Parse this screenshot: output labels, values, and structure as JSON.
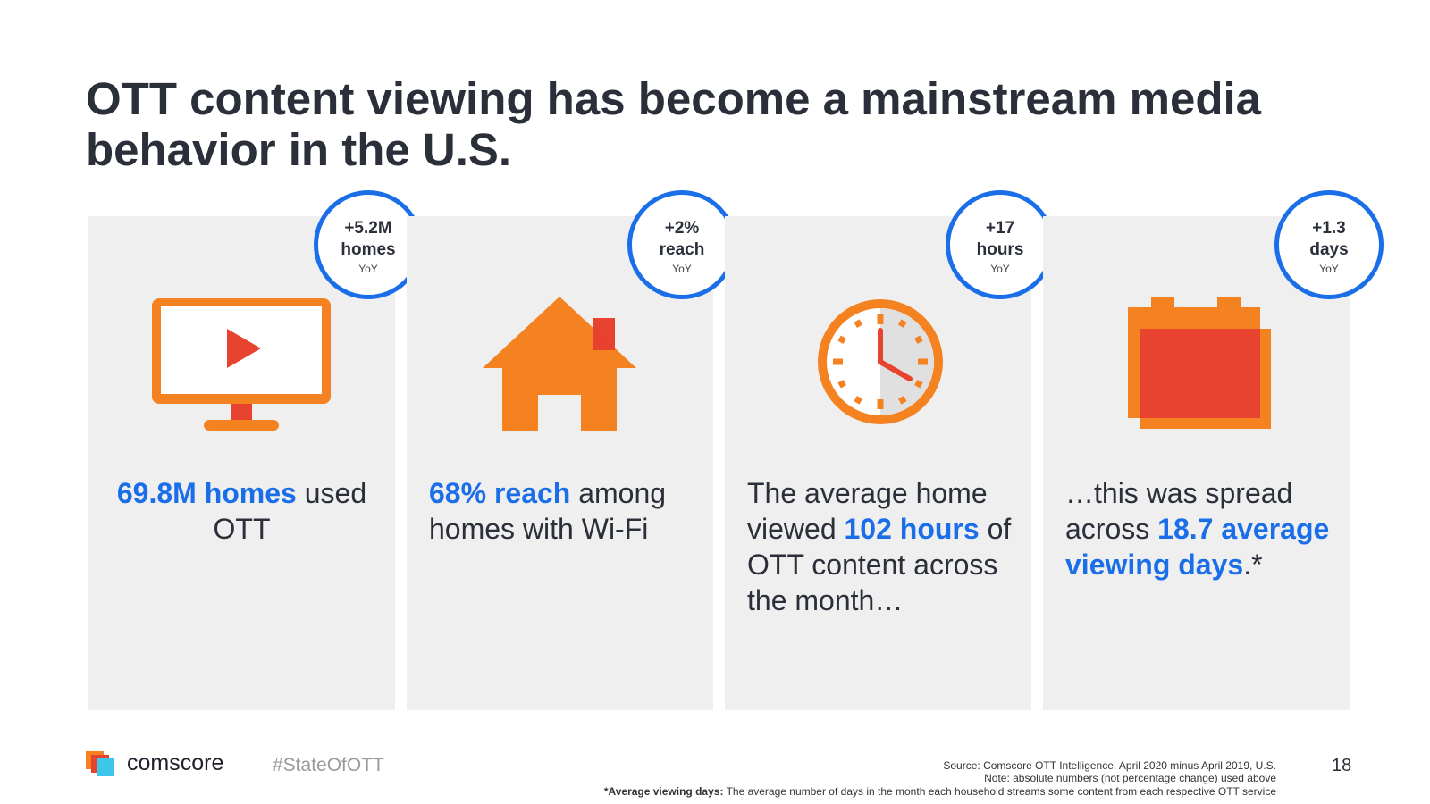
{
  "title": "OTT content viewing has become a mainstream media behavior in the U.S.",
  "cards": [
    {
      "badge": {
        "line1": "+5.2M",
        "line2": "homes",
        "line3": "YoY"
      },
      "icon": "tv-play-icon",
      "stat": {
        "hl1": "69.8M homes",
        "rest": " used OTT"
      }
    },
    {
      "badge": {
        "line1": "+2%",
        "line2": "reach",
        "line3": "YoY"
      },
      "icon": "house-icon",
      "stat": {
        "hl1": "68%  reach",
        "rest": " among homes with Wi-Fi"
      }
    },
    {
      "badge": {
        "line1": "+17",
        "line2": "hours",
        "line3": "YoY"
      },
      "icon": "clock-icon",
      "stat": {
        "pre": "The average home viewed ",
        "hl1": "102 hours",
        "rest": " of OTT content across the month…"
      }
    },
    {
      "badge": {
        "line1": "+1.3",
        "line2": "days",
        "line3": "YoY"
      },
      "icon": "calendar-icon",
      "stat": {
        "pre": "…this was spread across ",
        "hl1": "18.7 average viewing days",
        "rest": ".*"
      }
    }
  ],
  "footer": {
    "brand": "comscore",
    "hashtag": "#StateOfOTT",
    "source": "Source: Comscore OTT Intelligence, April 2020 minus April 2019, U.S.",
    "note": "Note: absolute numbers (not percentage change) used above",
    "def_label": "*Average viewing days:",
    "def_text": " The average number of days in the month each household streams some content from each respective OTT service",
    "page_number": "18"
  },
  "colors": {
    "accent": "#1a6ee8",
    "orange": "#f58220",
    "red": "#e8432f",
    "card_bg": "#efefef",
    "text": "#2b2f3a"
  }
}
